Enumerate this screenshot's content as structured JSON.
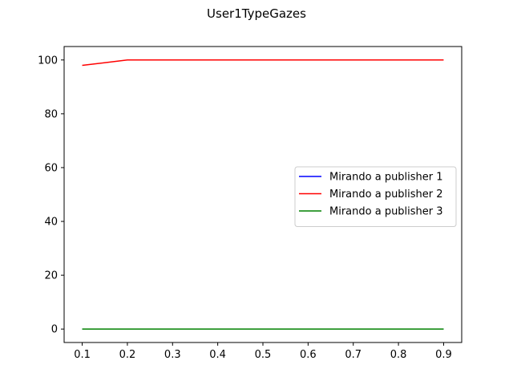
{
  "chart_data": {
    "type": "line",
    "title": "User1TypeGazes",
    "xlabel": "",
    "ylabel": "",
    "x": [
      0.1,
      0.2,
      0.3,
      0.4,
      0.5,
      0.6,
      0.7,
      0.8,
      0.9
    ],
    "x_ticks": [
      "0.1",
      "0.2",
      "0.3",
      "0.4",
      "0.5",
      "0.6",
      "0.7",
      "0.8",
      "0.9"
    ],
    "y_ticks": [
      "0",
      "20",
      "40",
      "60",
      "80",
      "100"
    ],
    "xlim": [
      0.06,
      0.94
    ],
    "ylim": [
      -5,
      105
    ],
    "grid": false,
    "legend_position": "center-right",
    "series": [
      {
        "name": "Mirando a publisher 1",
        "color": "#0000ff",
        "values": [
          0,
          0,
          0,
          0,
          0,
          0,
          0,
          0,
          0
        ]
      },
      {
        "name": "Mirando a publisher 2",
        "color": "#ff0000",
        "values": [
          98,
          100,
          100,
          100,
          100,
          100,
          100,
          100,
          100
        ]
      },
      {
        "name": "Mirando a publisher 3",
        "color": "#008000",
        "values": [
          0,
          0,
          0,
          0,
          0,
          0,
          0,
          0,
          0
        ]
      }
    ]
  }
}
